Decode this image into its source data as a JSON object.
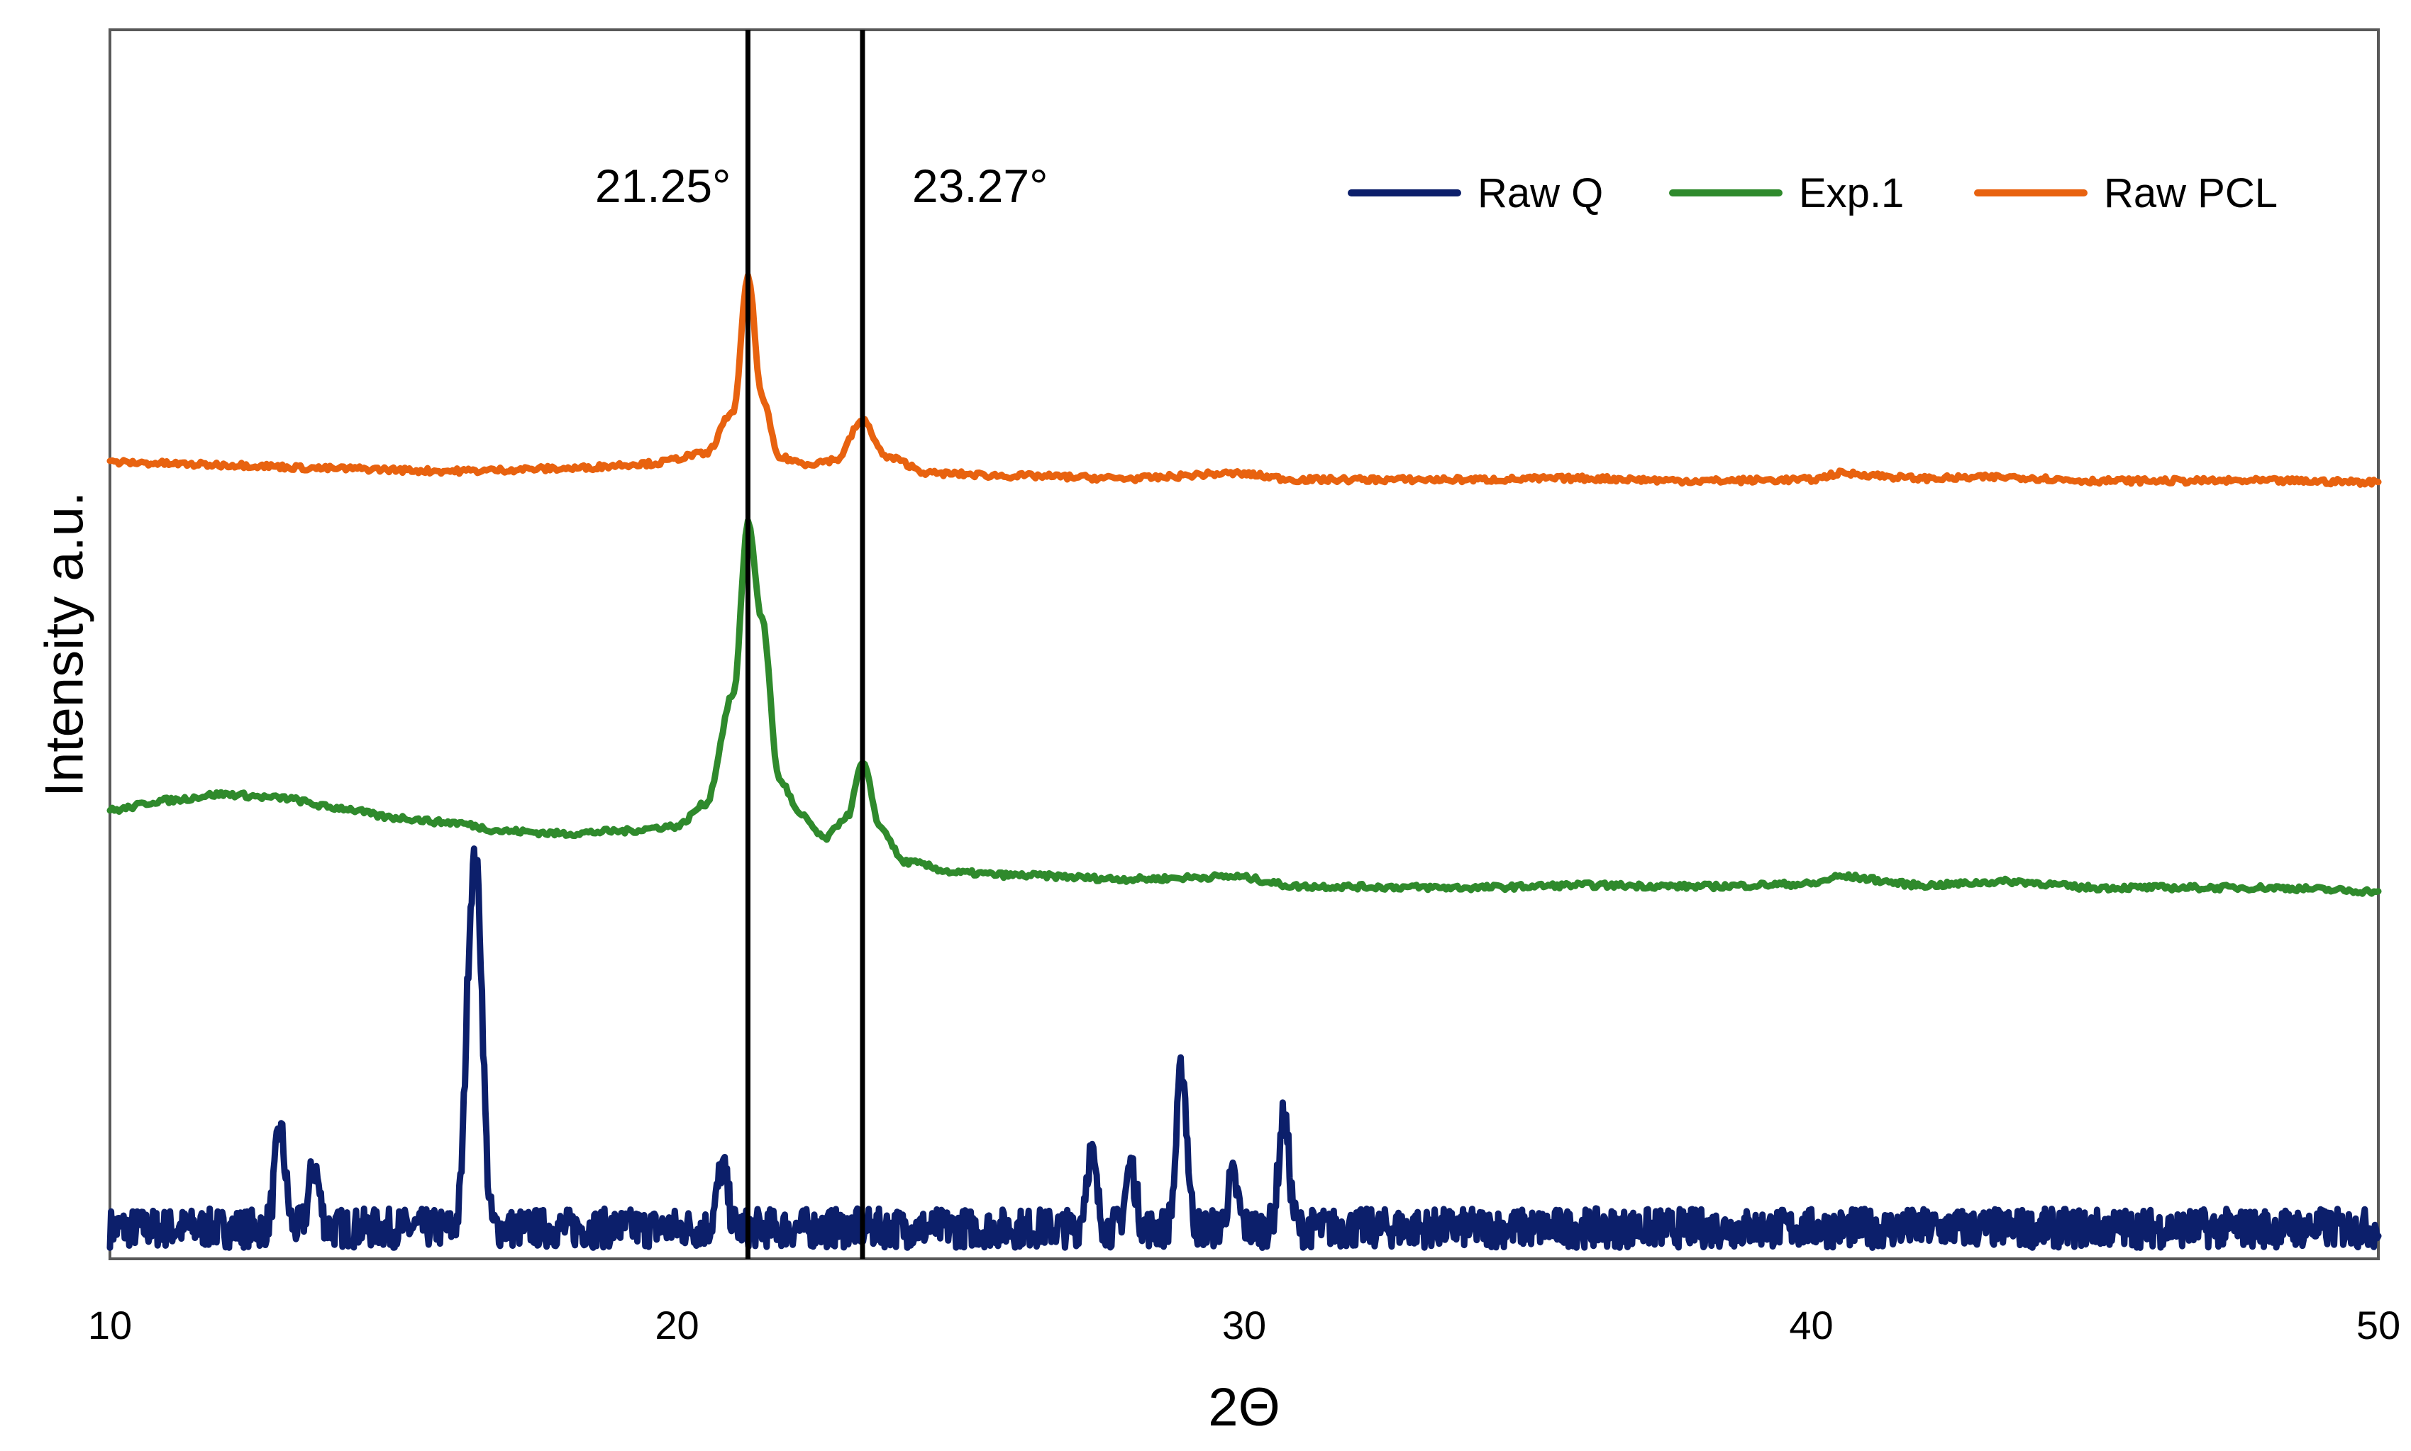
{
  "chart_data": {
    "type": "line",
    "title": "",
    "xlabel": "2Θ",
    "ylabel": "Intensity a.u.",
    "xlim": [
      10,
      50
    ],
    "ylim": [
      0,
      100
    ],
    "xticks": [
      10,
      20,
      30,
      40,
      50
    ],
    "grid": false,
    "legend_position": "top-right",
    "annotations": [
      {
        "text": "21.25°",
        "x": 21.25
      },
      {
        "text": "23.27°",
        "x": 23.27
      }
    ],
    "series": [
      {
        "name": "Raw Q",
        "color": "#0c1f6b",
        "peaks": [
          [
            13.0,
            8
          ],
          [
            13.6,
            5
          ],
          [
            16.35,
            20
          ],
          [
            16.5,
            22
          ],
          [
            20.8,
            5
          ],
          [
            27.3,
            6
          ],
          [
            28.0,
            5
          ],
          [
            28.9,
            13
          ],
          [
            29.8,
            4
          ],
          [
            30.7,
            9
          ]
        ],
        "baseline": 2.5,
        "noise": 1.6
      },
      {
        "name": "Exp.1",
        "color": "#2f8a2c",
        "x": [
          10,
          11,
          12,
          13,
          14,
          15,
          16,
          17,
          18,
          19,
          20,
          20.5,
          21,
          21.25,
          21.5,
          21.8,
          22.2,
          22.6,
          23.0,
          23.27,
          23.6,
          24.0,
          25,
          26,
          28,
          29.8,
          31,
          34,
          36,
          38,
          40,
          40.5,
          42,
          43.5,
          45,
          48,
          50
        ],
        "values": [
          36.5,
          37.3,
          37.8,
          37.5,
          36.7,
          35.9,
          35.5,
          34.8,
          34.6,
          34.8,
          35.2,
          37,
          46,
          60,
          52,
          39,
          36,
          34.2,
          36,
          40.3,
          35,
          32.3,
          31.4,
          31.2,
          30.9,
          31.1,
          30.3,
          30.2,
          30.4,
          30.3,
          30.5,
          31.1,
          30.4,
          30.7,
          30.2,
          30.2,
          29.9
        ]
      },
      {
        "name": "Raw PCL",
        "color": "#e8620f",
        "x": [
          10,
          12,
          14,
          16,
          18,
          19.5,
          20.5,
          21.0,
          21.25,
          21.5,
          21.8,
          22.3,
          22.8,
          23.27,
          23.7,
          24.5,
          26,
          28,
          29.8,
          31,
          34,
          36,
          38,
          40,
          40.5,
          42,
          43.5,
          45,
          48,
          50
        ],
        "values": [
          64.8,
          64.6,
          64.3,
          64.1,
          64.3,
          64.7,
          65.5,
          69,
          80,
          70,
          65.2,
          64.7,
          65.0,
          68.2,
          65.2,
          63.9,
          63.7,
          63.5,
          63.9,
          63.4,
          63.4,
          63.5,
          63.3,
          63.4,
          63.9,
          63.5,
          63.6,
          63.3,
          63.3,
          63.2
        ]
      }
    ]
  }
}
